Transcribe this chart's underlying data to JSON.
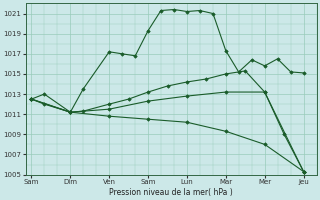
{
  "title": "",
  "xlabel": "Pression niveau de la mer( hPa )",
  "background_color": "#cce8e8",
  "grid_color": "#99ccbb",
  "line_color": "#1a5c2a",
  "ylim": [
    1005,
    1022
  ],
  "ytick_vals": [
    1005,
    1007,
    1009,
    1011,
    1013,
    1015,
    1017,
    1019,
    1021
  ],
  "day_labels": [
    "Sam",
    "Dim",
    "Ven",
    "Sam",
    "Lun",
    "Mar",
    "Mer",
    "Jeu"
  ],
  "day_positions": [
    0,
    1,
    2,
    3,
    4,
    5,
    6,
    7
  ],
  "xlim": [
    -0.15,
    7.15
  ],
  "series1_x": [
    0,
    0.33,
    1.0,
    1.33,
    2.0,
    2.33,
    2.67,
    3.0,
    3.33,
    3.67,
    4.0,
    4.33,
    4.67,
    5.0,
    5.33,
    5.67,
    6.0,
    6.33,
    6.67,
    7.0
  ],
  "series1_y": [
    1012.5,
    1013.0,
    1011.2,
    1013.5,
    1017.2,
    1017.0,
    1016.8,
    1019.3,
    1021.3,
    1021.4,
    1021.2,
    1021.3,
    1021.0,
    1017.3,
    1015.2,
    1016.4,
    1015.8,
    1016.5,
    1015.2,
    1015.1
  ],
  "series2_x": [
    0,
    0.33,
    1.0,
    1.33,
    2.0,
    2.5,
    3.0,
    3.5,
    4.0,
    4.5,
    5.0,
    5.5,
    6.0,
    6.5,
    7.0
  ],
  "series2_y": [
    1012.5,
    1012.0,
    1011.2,
    1011.3,
    1012.0,
    1012.5,
    1013.2,
    1013.8,
    1014.2,
    1014.5,
    1015.0,
    1015.3,
    1013.2,
    1009.0,
    1005.3
  ],
  "series3_x": [
    0,
    1.0,
    2.0,
    3.0,
    4.0,
    5.0,
    6.0,
    7.0
  ],
  "series3_y": [
    1012.5,
    1011.2,
    1011.5,
    1012.3,
    1012.8,
    1013.2,
    1013.2,
    1005.3
  ],
  "series4_x": [
    0,
    1.0,
    2.0,
    3.0,
    4.0,
    5.0,
    6.0,
    7.0
  ],
  "series4_y": [
    1012.5,
    1011.2,
    1010.8,
    1010.5,
    1010.2,
    1009.3,
    1008.0,
    1005.3
  ]
}
